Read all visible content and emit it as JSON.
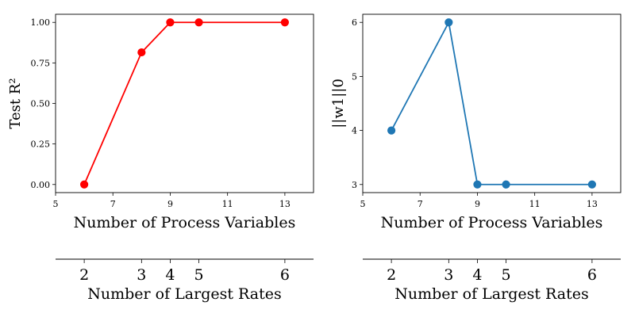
{
  "chart_data": [
    {
      "type": "line",
      "x": [
        6,
        8,
        9,
        10,
        13
      ],
      "series": [
        {
          "values": [
            0.0,
            0.815,
            1.0,
            1.0,
            1.0
          ],
          "color": "#ff0000",
          "marker": "circle"
        }
      ],
      "xlabel": "Number of Process Variables",
      "ylabel": "Test R²",
      "xlim": [
        5,
        14
      ],
      "ylim": [
        -0.05,
        1.05
      ],
      "x_ticks": [
        "5",
        "7",
        "9",
        "11",
        "13"
      ],
      "y_ticks": [
        "0.00",
        "0.25",
        "0.50",
        "0.75",
        "1.00"
      ],
      "secondary_axis": {
        "label": "Number of Largest Rates",
        "ticks": [
          "2",
          "3",
          "4",
          "5",
          "6"
        ],
        "x_positions": [
          6,
          8,
          9,
          10,
          13
        ]
      },
      "grid": false,
      "legend": "none"
    },
    {
      "type": "line",
      "x": [
        6,
        8,
        9,
        10,
        13
      ],
      "series": [
        {
          "values": [
            4,
            6,
            3,
            3,
            3
          ],
          "color": "#1f77b4",
          "marker": "circle"
        }
      ],
      "xlabel": "Number of Process Variables",
      "ylabel": "||w1||0",
      "xlim": [
        5,
        14
      ],
      "ylim": [
        2.85,
        6.15
      ],
      "x_ticks": [
        "5",
        "7",
        "9",
        "11",
        "13"
      ],
      "y_ticks": [
        "3",
        "4",
        "5",
        "6"
      ],
      "secondary_axis": {
        "label": "Number of Largest Rates",
        "ticks": [
          "2",
          "3",
          "4",
          "5",
          "6"
        ],
        "x_positions": [
          6,
          8,
          9,
          10,
          13
        ]
      },
      "grid": false,
      "legend": "none"
    }
  ]
}
